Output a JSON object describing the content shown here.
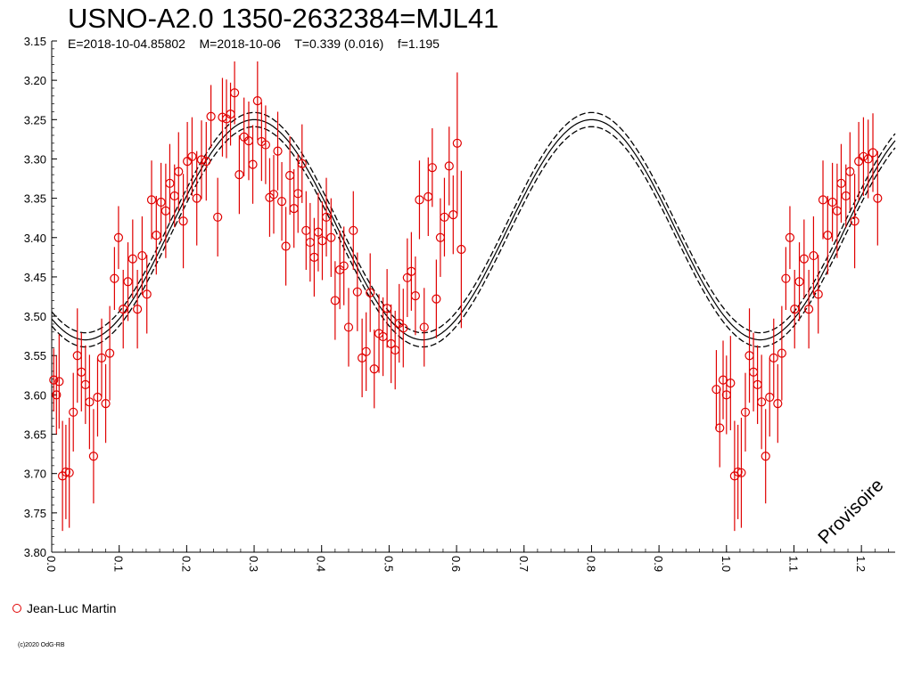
{
  "header": {
    "title": "USNO-A2.0 1350-2632384=MJL41",
    "subtitle": "E=2018-10-04.85802    M=2018-10-06    T=0.339 (0.016)    f=1.195"
  },
  "legend": {
    "label": "Jean-Luc Martin",
    "marker_color": "#e00000"
  },
  "copyright": "(c)2020 OdG-RB",
  "watermark": "Provisoire",
  "chart_data": {
    "type": "scatter",
    "title": "USNO-A2.0 1350-2632384=MJL41",
    "xlabel": "",
    "ylabel": "",
    "xlim": [
      0.0,
      1.25
    ],
    "ylim": [
      3.8,
      3.15
    ],
    "y_inverted": true,
    "grid": false,
    "legend_placement": "bottom-left",
    "x_ticks": [
      "0.0",
      "0.1",
      "0.2",
      "0.3",
      "0.4",
      "0.5",
      "0.6",
      "0.7",
      "0.8",
      "0.9",
      "1.0",
      "1.1",
      "1.2"
    ],
    "y_ticks": [
      "3.15",
      "3.20",
      "3.25",
      "3.30",
      "3.35",
      "3.40",
      "3.45",
      "3.50",
      "3.55",
      "3.60",
      "3.65",
      "3.70",
      "3.75",
      "3.80"
    ],
    "fit": {
      "style": "solid line with dashed uncertainty envelope",
      "color": "#000000",
      "mean_mag": 3.39,
      "amplitude": 0.14,
      "harmonic_phase_of_maximum": 0.3,
      "envelope": 0.009
    },
    "series": [
      {
        "name": "Jean-Luc Martin",
        "color": "#e00000",
        "marker": "open-circle",
        "points": [
          [
            0.003,
            3.581,
            0.04
          ],
          [
            0.007,
            3.6,
            0.05
          ],
          [
            0.011,
            3.583,
            0.06
          ],
          [
            0.016,
            3.703,
            0.07
          ],
          [
            0.021,
            3.698,
            0.06
          ],
          [
            0.026,
            3.699,
            0.07
          ],
          [
            0.032,
            3.622,
            0.05
          ],
          [
            0.038,
            3.55,
            0.06
          ],
          [
            0.044,
            3.571,
            0.05
          ],
          [
            0.05,
            3.587,
            0.05
          ],
          [
            0.056,
            3.609,
            0.06
          ],
          [
            0.062,
            3.678,
            0.06
          ],
          [
            0.068,
            3.603,
            0.05
          ],
          [
            0.074,
            3.553,
            0.05
          ],
          [
            0.08,
            3.611,
            0.05
          ],
          [
            0.086,
            3.547,
            0.06
          ],
          [
            0.093,
            3.452,
            0.04
          ],
          [
            0.099,
            3.4,
            0.04
          ],
          [
            0.106,
            3.491,
            0.05
          ],
          [
            0.113,
            3.456,
            0.05
          ],
          [
            0.12,
            3.427,
            0.05
          ],
          [
            0.127,
            3.491,
            0.05
          ],
          [
            0.134,
            3.423,
            0.05
          ],
          [
            0.141,
            3.472,
            0.05
          ],
          [
            0.148,
            3.352,
            0.05
          ],
          [
            0.155,
            3.397,
            0.05
          ],
          [
            0.162,
            3.355,
            0.05
          ],
          [
            0.169,
            3.366,
            0.06
          ],
          [
            0.175,
            3.331,
            0.05
          ],
          [
            0.182,
            3.347,
            0.04
          ],
          [
            0.188,
            3.316,
            0.05
          ],
          [
            0.195,
            3.379,
            0.06
          ],
          [
            0.201,
            3.303,
            0.05
          ],
          [
            0.208,
            3.297,
            0.05
          ],
          [
            0.215,
            3.35,
            0.06
          ],
          [
            0.222,
            3.301,
            0.05
          ],
          [
            0.229,
            3.303,
            0.05
          ],
          [
            0.236,
            3.246,
            0.04
          ],
          [
            0.246,
            3.374,
            0.05
          ],
          [
            0.253,
            3.247,
            0.05
          ],
          [
            0.259,
            3.249,
            0.05
          ],
          [
            0.265,
            3.243,
            0.04
          ],
          [
            0.271,
            3.216,
            0.04
          ],
          [
            0.278,
            3.32,
            0.05
          ],
          [
            0.285,
            3.272,
            0.05
          ],
          [
            0.292,
            3.277,
            0.05
          ],
          [
            0.298,
            3.307,
            0.05
          ],
          [
            0.305,
            3.226,
            0.05
          ],
          [
            0.311,
            3.278,
            0.05
          ],
          [
            0.317,
            3.282,
            0.05
          ],
          [
            0.323,
            3.349,
            0.05
          ],
          [
            0.329,
            3.345,
            0.05
          ],
          [
            0.335,
            3.29,
            0.05
          ],
          [
            0.341,
            3.354,
            0.05
          ],
          [
            0.347,
            3.411,
            0.05
          ],
          [
            0.353,
            3.321,
            0.05
          ],
          [
            0.359,
            3.363,
            0.05
          ],
          [
            0.365,
            3.344,
            0.05
          ],
          [
            0.371,
            3.306,
            0.05
          ],
          [
            0.377,
            3.391,
            0.05
          ],
          [
            0.383,
            3.406,
            0.05
          ],
          [
            0.389,
            3.425,
            0.05
          ],
          [
            0.395,
            3.393,
            0.05
          ],
          [
            0.401,
            3.404,
            0.05
          ],
          [
            0.407,
            3.374,
            0.05
          ],
          [
            0.414,
            3.4,
            0.05
          ],
          [
            0.42,
            3.48,
            0.05
          ],
          [
            0.427,
            3.441,
            0.05
          ],
          [
            0.433,
            3.436,
            0.05
          ],
          [
            0.44,
            3.514,
            0.05
          ],
          [
            0.447,
            3.391,
            0.05
          ],
          [
            0.453,
            3.469,
            0.05
          ],
          [
            0.46,
            3.553,
            0.05
          ],
          [
            0.466,
            3.545,
            0.05
          ],
          [
            0.472,
            3.47,
            0.05
          ],
          [
            0.478,
            3.567,
            0.05
          ],
          [
            0.485,
            3.522,
            0.05
          ],
          [
            0.491,
            3.526,
            0.05
          ],
          [
            0.497,
            3.49,
            0.05
          ],
          [
            0.503,
            3.535,
            0.05
          ],
          [
            0.509,
            3.543,
            0.05
          ],
          [
            0.515,
            3.509,
            0.05
          ],
          [
            0.521,
            3.515,
            0.05
          ],
          [
            0.527,
            3.451,
            0.05
          ],
          [
            0.533,
            3.443,
            0.05
          ],
          [
            0.539,
            3.474,
            0.05
          ],
          [
            0.545,
            3.352,
            0.05
          ],
          [
            0.552,
            3.514,
            0.05
          ],
          [
            0.558,
            3.348,
            0.05
          ],
          [
            0.564,
            3.311,
            0.05
          ],
          [
            0.57,
            3.478,
            0.05
          ],
          [
            0.576,
            3.4,
            0.05
          ],
          [
            0.582,
            3.374,
            0.05
          ],
          [
            0.589,
            3.309,
            0.05
          ],
          [
            0.595,
            3.371,
            0.05
          ],
          [
            0.601,
            3.28,
            0.09
          ],
          [
            0.607,
            3.415,
            0.1
          ],
          [
            0.985,
            3.593,
            0.05
          ],
          [
            0.99,
            3.642,
            0.05
          ],
          [
            0.995,
            3.581,
            0.05
          ],
          [
            1.0,
            3.6,
            0.05
          ],
          [
            1.006,
            3.585,
            0.06
          ],
          [
            1.012,
            3.703,
            0.07
          ],
          [
            1.017,
            3.698,
            0.06
          ],
          [
            1.022,
            3.699,
            0.07
          ],
          [
            1.028,
            3.622,
            0.05
          ],
          [
            1.034,
            3.55,
            0.06
          ],
          [
            1.04,
            3.571,
            0.05
          ],
          [
            1.046,
            3.587,
            0.05
          ],
          [
            1.052,
            3.609,
            0.06
          ],
          [
            1.058,
            3.678,
            0.06
          ],
          [
            1.064,
            3.603,
            0.05
          ],
          [
            1.07,
            3.553,
            0.05
          ],
          [
            1.076,
            3.611,
            0.05
          ],
          [
            1.082,
            3.547,
            0.06
          ],
          [
            1.088,
            3.452,
            0.04
          ],
          [
            1.094,
            3.4,
            0.04
          ],
          [
            1.101,
            3.491,
            0.05
          ],
          [
            1.108,
            3.456,
            0.05
          ],
          [
            1.115,
            3.427,
            0.05
          ],
          [
            1.122,
            3.491,
            0.05
          ],
          [
            1.129,
            3.423,
            0.05
          ],
          [
            1.136,
            3.472,
            0.05
          ],
          [
            1.143,
            3.352,
            0.05
          ],
          [
            1.15,
            3.397,
            0.05
          ],
          [
            1.157,
            3.355,
            0.05
          ],
          [
            1.164,
            3.366,
            0.06
          ],
          [
            1.17,
            3.331,
            0.05
          ],
          [
            1.177,
            3.347,
            0.04
          ],
          [
            1.183,
            3.316,
            0.05
          ],
          [
            1.19,
            3.379,
            0.06
          ],
          [
            1.196,
            3.303,
            0.05
          ],
          [
            1.203,
            3.297,
            0.05
          ],
          [
            1.21,
            3.3,
            0.05
          ],
          [
            1.217,
            3.292,
            0.05
          ],
          [
            1.224,
            3.35,
            0.06
          ]
        ]
      }
    ]
  }
}
